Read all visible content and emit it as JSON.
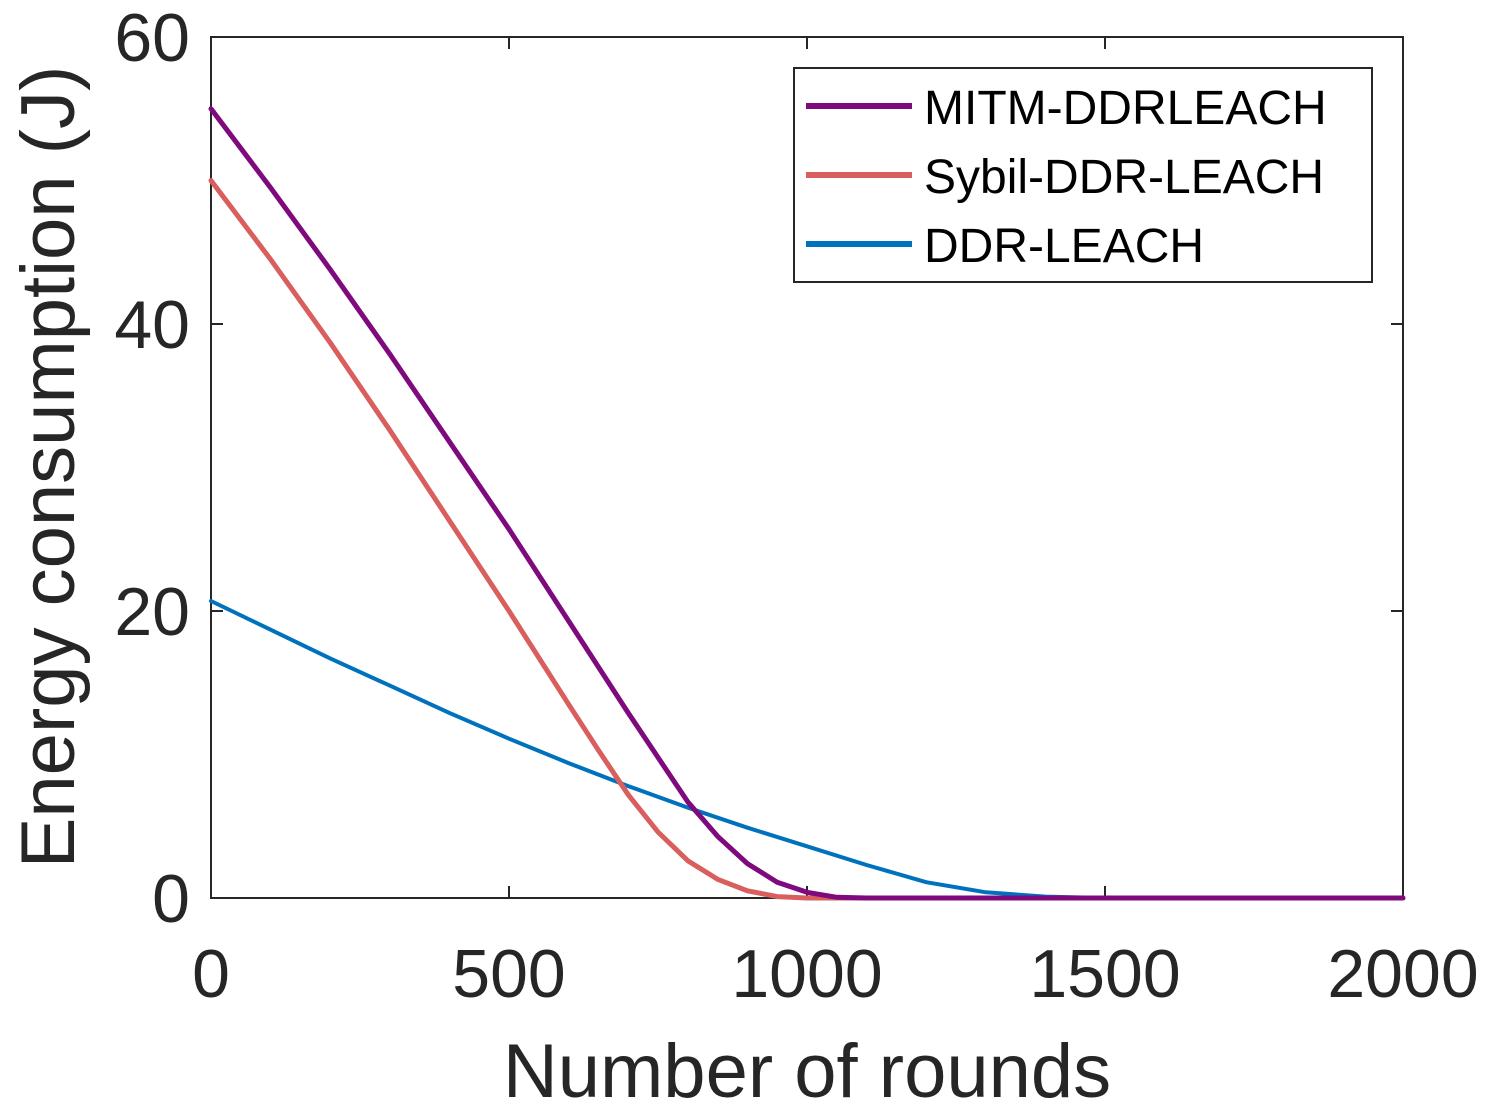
{
  "chart_data": {
    "type": "line",
    "title": "",
    "xlabel": "Number of rounds",
    "ylabel": "Energy consumption (J)",
    "xlim": [
      0,
      2000
    ],
    "ylim": [
      0,
      60
    ],
    "xticks": [
      0,
      500,
      1000,
      1500,
      2000
    ],
    "yticks": [
      0,
      20,
      40,
      60
    ],
    "grid": false,
    "legend_position": "top-right",
    "series": [
      {
        "name": "MITM-DDRLEACH",
        "color": "#7E0A7E",
        "points": [
          [
            0,
            55
          ],
          [
            100,
            49.5
          ],
          [
            200,
            43.8
          ],
          [
            300,
            37.9
          ],
          [
            400,
            31.8
          ],
          [
            500,
            25.7
          ],
          [
            600,
            19.3
          ],
          [
            700,
            12.9
          ],
          [
            800,
            6.7
          ],
          [
            850,
            4.3
          ],
          [
            900,
            2.4
          ],
          [
            950,
            1.1
          ],
          [
            1000,
            0.4
          ],
          [
            1050,
            0.05
          ],
          [
            1100,
            0
          ],
          [
            1500,
            0
          ],
          [
            2000,
            0
          ]
        ]
      },
      {
        "name": "Sybil-DDR-LEACH",
        "color": "#D95F5F",
        "points": [
          [
            0,
            50
          ],
          [
            100,
            44.5
          ],
          [
            200,
            38.7
          ],
          [
            300,
            32.6
          ],
          [
            400,
            26.3
          ],
          [
            500,
            20
          ],
          [
            600,
            13.5
          ],
          [
            650,
            10.3
          ],
          [
            700,
            7.2
          ],
          [
            750,
            4.6
          ],
          [
            800,
            2.6
          ],
          [
            850,
            1.3
          ],
          [
            900,
            0.5
          ],
          [
            950,
            0.1
          ],
          [
            1000,
            0
          ],
          [
            1500,
            0
          ],
          [
            2000,
            0
          ]
        ]
      },
      {
        "name": "DDR-LEACH",
        "color": "#0072BD",
        "points": [
          [
            0,
            20.7
          ],
          [
            100,
            18.7
          ],
          [
            200,
            16.7
          ],
          [
            300,
            14.8
          ],
          [
            400,
            12.9
          ],
          [
            500,
            11.1
          ],
          [
            600,
            9.4
          ],
          [
            700,
            7.8
          ],
          [
            800,
            6.3
          ],
          [
            900,
            4.9
          ],
          [
            1000,
            3.6
          ],
          [
            1100,
            2.3
          ],
          [
            1200,
            1.1
          ],
          [
            1300,
            0.4
          ],
          [
            1400,
            0.1
          ],
          [
            1500,
            0
          ],
          [
            2000,
            0
          ]
        ]
      }
    ]
  }
}
